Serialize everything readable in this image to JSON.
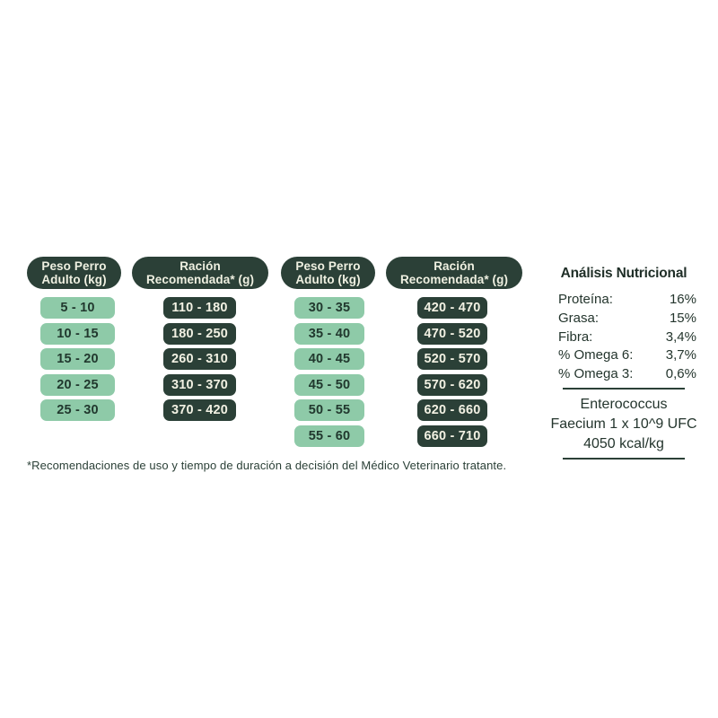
{
  "colors": {
    "dark_green": "#2b4037",
    "light_green": "#8ecaa8",
    "cream_text": "#f2f1e3",
    "dark_text": "#24352d",
    "background": "#ffffff"
  },
  "feeding_tables": [
    {
      "weight_header": {
        "line1": "Peso Perro",
        "line2": "Adulto (kg)"
      },
      "ration_header": {
        "line1": "Ración",
        "line2": "Recomendada* (g)"
      },
      "weights": [
        "5 - 10",
        "10 - 15",
        "15 - 20",
        "20 - 25",
        "25 - 30"
      ],
      "rations": [
        "110 - 180",
        "180 - 250",
        "260 - 310",
        "310 - 370",
        "370 - 420"
      ]
    },
    {
      "weight_header": {
        "line1": "Peso Perro",
        "line2": "Adulto (kg)"
      },
      "ration_header": {
        "line1": "Ración",
        "line2": "Recomendada* (g)"
      },
      "weights": [
        "30 - 35",
        "35 - 40",
        "40 - 45",
        "45 - 50",
        "50 - 55",
        "55 - 60"
      ],
      "rations": [
        "420 - 470",
        "470 - 520",
        "520 - 570",
        "570 - 620",
        "620 - 660",
        "660 - 710"
      ]
    }
  ],
  "nutrition_panel": {
    "title": "Análisis Nutricional",
    "rows": [
      {
        "label": "Proteína:",
        "value": "16%"
      },
      {
        "label": "Grasa:",
        "value": "15%"
      },
      {
        "label": "Fibra:",
        "value": "3,4%"
      },
      {
        "label": "% Omega 6:",
        "value": "3,7%"
      },
      {
        "label": "% Omega 3:",
        "value": "0,6%"
      }
    ],
    "supplement": {
      "line1": "Enterococcus",
      "line2": "Faecium 1 x 10^9 UFC",
      "line3": "4050 kcal/kg"
    }
  },
  "footnote": "*Recomendaciones de uso y tiempo de duración a decisión del Médico Veterinario tratante."
}
